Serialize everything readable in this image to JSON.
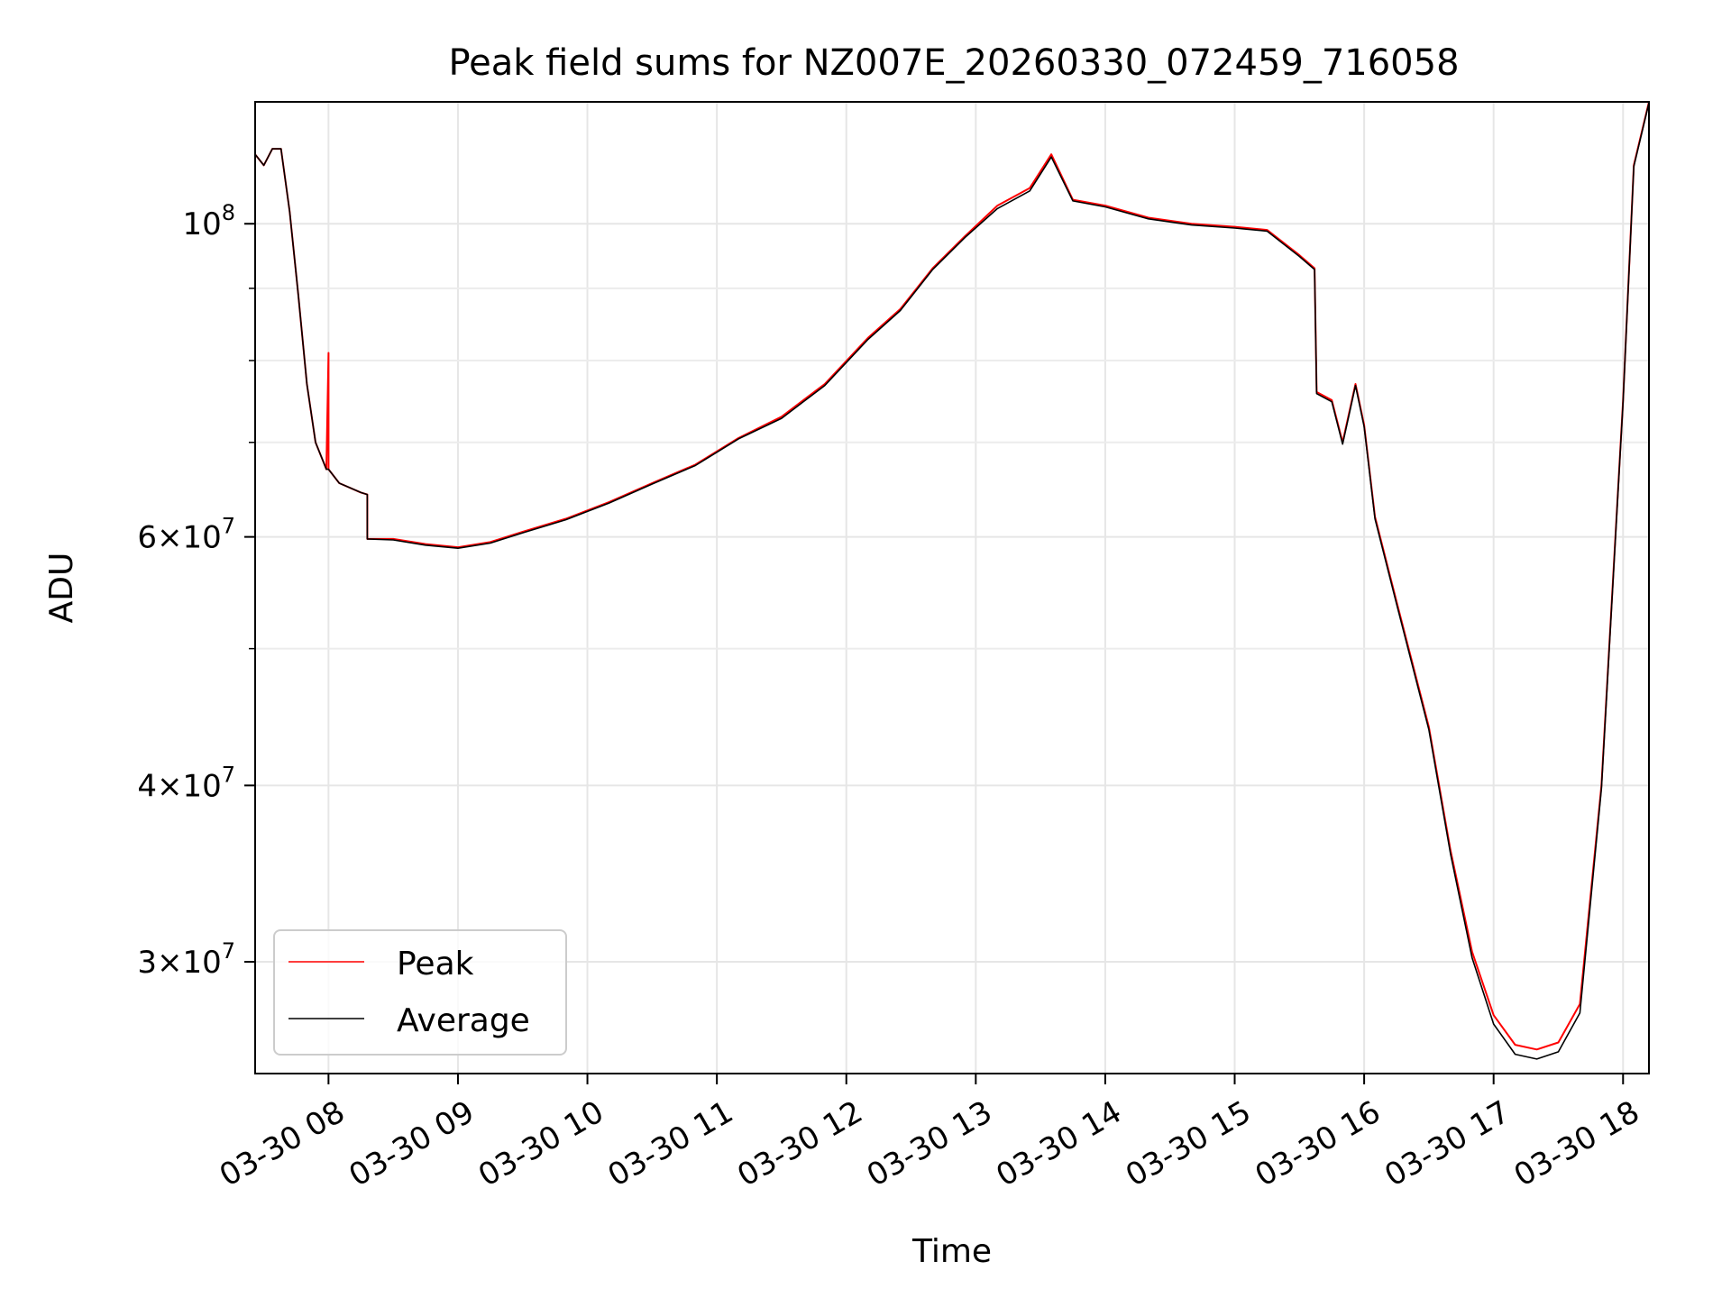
{
  "chart_data": {
    "type": "line",
    "title": "Peak field sums for NZ007E_20260330_072459_716058",
    "xlabel": "Time",
    "ylabel": "ADU",
    "y_scale": "log",
    "xlim": [
      "03-30 07:26",
      "03-30 18:12"
    ],
    "ylim": [
      25000000,
      122000000
    ],
    "grid": true,
    "legend_position": "lower-left",
    "x_ticks": [
      {
        "time": "03-30 08:00",
        "label": "03-30 08"
      },
      {
        "time": "03-30 09:00",
        "label": "03-30 09"
      },
      {
        "time": "03-30 10:00",
        "label": "03-30 10"
      },
      {
        "time": "03-30 11:00",
        "label": "03-30 11"
      },
      {
        "time": "03-30 12:00",
        "label": "03-30 12"
      },
      {
        "time": "03-30 13:00",
        "label": "03-30 13"
      },
      {
        "time": "03-30 14:00",
        "label": "03-30 14"
      },
      {
        "time": "03-30 15:00",
        "label": "03-30 15"
      },
      {
        "time": "03-30 16:00",
        "label": "03-30 16"
      },
      {
        "time": "03-30 17:00",
        "label": "03-30 17"
      },
      {
        "time": "03-30 18:00",
        "label": "03-30 18"
      }
    ],
    "y_ticks": [
      {
        "value": 30000000,
        "mantissa": "3",
        "exponent": "7"
      },
      {
        "value": 40000000,
        "mantissa": "4",
        "exponent": "7"
      },
      {
        "value": 60000000,
        "mantissa": "6",
        "exponent": "7"
      },
      {
        "value": 100000000,
        "mantissa": "10",
        "exponent": "8"
      }
    ],
    "y_minor_ticks": [
      50000000,
      70000000,
      80000000,
      90000000
    ],
    "series": [
      {
        "name": "Peak",
        "color": "#ff0000",
        "points": [
          [
            "03-30 07:26",
            112000000
          ],
          [
            "03-30 07:30",
            110000000
          ],
          [
            "03-30 07:34",
            113000000
          ],
          [
            "03-30 07:38",
            113000000
          ],
          [
            "03-30 07:42",
            102000000
          ],
          [
            "03-30 07:46",
            89000000
          ],
          [
            "03-30 07:50",
            77000000
          ],
          [
            "03-30 07:54",
            70000000
          ],
          [
            "03-30 07:59",
            67000000
          ],
          [
            "03-30 08:00",
            81000000
          ],
          [
            "03-30 08:00",
            67000000
          ],
          [
            "03-30 08:05",
            65500000
          ],
          [
            "03-30 08:15",
            64500000
          ],
          [
            "03-30 08:18",
            64300000
          ],
          [
            "03-30 08:18",
            59800000
          ],
          [
            "03-30 08:30",
            59800000
          ],
          [
            "03-30 08:45",
            59300000
          ],
          [
            "03-30 09:00",
            59000000
          ],
          [
            "03-30 09:15",
            59500000
          ],
          [
            "03-30 09:30",
            60500000
          ],
          [
            "03-30 09:50",
            61800000
          ],
          [
            "03-30 10:10",
            63500000
          ],
          [
            "03-30 10:30",
            65500000
          ],
          [
            "03-30 10:50",
            67500000
          ],
          [
            "03-30 11:10",
            70500000
          ],
          [
            "03-30 11:30",
            73000000
          ],
          [
            "03-30 11:50",
            77000000
          ],
          [
            "03-30 12:10",
            83000000
          ],
          [
            "03-30 12:25",
            87000000
          ],
          [
            "03-30 12:40",
            93000000
          ],
          [
            "03-30 12:55",
            98000000
          ],
          [
            "03-30 13:10",
            103000000
          ],
          [
            "03-30 13:25",
            106000000
          ],
          [
            "03-30 13:35",
            112000000
          ],
          [
            "03-30 13:45",
            104000000
          ],
          [
            "03-30 14:00",
            103000000
          ],
          [
            "03-30 14:20",
            101000000
          ],
          [
            "03-30 14:40",
            100000000
          ],
          [
            "03-30 15:00",
            99500000
          ],
          [
            "03-30 15:15",
            99000000
          ],
          [
            "03-30 15:30",
            95000000
          ],
          [
            "03-30 15:37",
            93000000
          ],
          [
            "03-30 15:38",
            76000000
          ],
          [
            "03-30 15:45",
            75000000
          ],
          [
            "03-30 15:50",
            70000000
          ],
          [
            "03-30 15:56",
            77000000
          ],
          [
            "03-30 16:00",
            72000000
          ],
          [
            "03-30 16:05",
            62000000
          ],
          [
            "03-30 16:15",
            54000000
          ],
          [
            "03-30 16:30",
            44000000
          ],
          [
            "03-30 16:40",
            36000000
          ],
          [
            "03-30 16:50",
            30500000
          ],
          [
            "03-30 17:00",
            27500000
          ],
          [
            "03-30 17:10",
            26200000
          ],
          [
            "03-30 17:20",
            26000000
          ],
          [
            "03-30 17:30",
            26300000
          ],
          [
            "03-30 17:40",
            28000000
          ],
          [
            "03-30 17:50",
            40000000
          ],
          [
            "03-30 18:00",
            75000000
          ],
          [
            "03-30 18:05",
            110000000
          ],
          [
            "03-30 18:12",
            122000000
          ]
        ]
      },
      {
        "name": "Average",
        "color": "#000000",
        "points": [
          [
            "03-30 07:26",
            112000000
          ],
          [
            "03-30 07:30",
            110000000
          ],
          [
            "03-30 07:34",
            113000000
          ],
          [
            "03-30 07:38",
            113000000
          ],
          [
            "03-30 07:42",
            102000000
          ],
          [
            "03-30 07:46",
            89000000
          ],
          [
            "03-30 07:50",
            77000000
          ],
          [
            "03-30 07:54",
            70000000
          ],
          [
            "03-30 07:59",
            67000000
          ],
          [
            "03-30 08:00",
            67000000
          ],
          [
            "03-30 08:05",
            65500000
          ],
          [
            "03-30 08:15",
            64500000
          ],
          [
            "03-30 08:18",
            64300000
          ],
          [
            "03-30 08:18",
            59800000
          ],
          [
            "03-30 08:30",
            59700000
          ],
          [
            "03-30 08:45",
            59200000
          ],
          [
            "03-30 09:00",
            58900000
          ],
          [
            "03-30 09:15",
            59400000
          ],
          [
            "03-30 09:30",
            60400000
          ],
          [
            "03-30 09:50",
            61700000
          ],
          [
            "03-30 10:10",
            63400000
          ],
          [
            "03-30 10:30",
            65400000
          ],
          [
            "03-30 10:50",
            67400000
          ],
          [
            "03-30 11:10",
            70400000
          ],
          [
            "03-30 11:30",
            72800000
          ],
          [
            "03-30 11:50",
            76800000
          ],
          [
            "03-30 12:10",
            82800000
          ],
          [
            "03-30 12:25",
            86800000
          ],
          [
            "03-30 12:40",
            92800000
          ],
          [
            "03-30 12:55",
            97800000
          ],
          [
            "03-30 13:10",
            102500000
          ],
          [
            "03-30 13:25",
            105500000
          ],
          [
            "03-30 13:35",
            111500000
          ],
          [
            "03-30 13:45",
            103800000
          ],
          [
            "03-30 14:00",
            102800000
          ],
          [
            "03-30 14:20",
            100800000
          ],
          [
            "03-30 14:40",
            99800000
          ],
          [
            "03-30 15:00",
            99300000
          ],
          [
            "03-30 15:15",
            98800000
          ],
          [
            "03-30 15:30",
            94800000
          ],
          [
            "03-30 15:37",
            92800000
          ],
          [
            "03-30 15:38",
            75800000
          ],
          [
            "03-30 15:45",
            74800000
          ],
          [
            "03-30 15:50",
            69800000
          ],
          [
            "03-30 15:56",
            76800000
          ],
          [
            "03-30 16:00",
            71800000
          ],
          [
            "03-30 16:05",
            61800000
          ],
          [
            "03-30 16:15",
            53800000
          ],
          [
            "03-30 16:30",
            43800000
          ],
          [
            "03-30 16:40",
            35800000
          ],
          [
            "03-30 16:50",
            30200000
          ],
          [
            "03-30 17:00",
            27100000
          ],
          [
            "03-30 17:10",
            25800000
          ],
          [
            "03-30 17:20",
            25600000
          ],
          [
            "03-30 17:30",
            25900000
          ],
          [
            "03-30 17:40",
            27600000
          ],
          [
            "03-30 17:50",
            39800000
          ],
          [
            "03-30 18:00",
            74800000
          ],
          [
            "03-30 18:05",
            109800000
          ],
          [
            "03-30 18:12",
            121800000
          ]
        ]
      }
    ]
  }
}
